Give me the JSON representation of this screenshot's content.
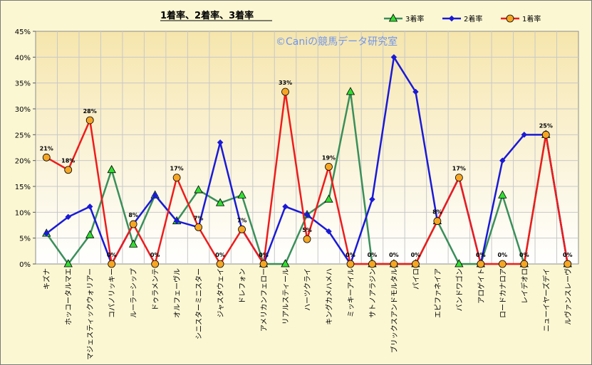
{
  "chart_data": {
    "type": "line",
    "title": "1着率、2着率、3着率",
    "watermark": "©Caniの競馬データ研究室",
    "categories": [
      "キズナ",
      "ホッコータルマエ",
      "マジェスティックウォリアー",
      "コパノリッキー",
      "ルーラーシップ",
      "ドゥラメンテ",
      "オルフェーヴル",
      "シニスターミニスター",
      "ジャスタウェイ",
      "ドレフォン",
      "アメリカンフェロー",
      "リアルスティール",
      "ハーツクライ",
      "キングカメハメハ",
      "ミッキーアイル",
      "サトノアラジン",
      "ブリックスアンドモルタル",
      "パイロ",
      "エピファネイア",
      "バンドワゴン",
      "アロゲイト",
      "ロードカナロア",
      "レイデオロ",
      "ニューイヤーズデイ",
      "ルヴァンスレーヴ"
    ],
    "series": [
      {
        "name": "3着率",
        "color": "#3a8f5a",
        "marker": "triangle",
        "values": [
          5.9,
          0,
          5.6,
          18.2,
          3.8,
          13.3,
          8.3,
          14.3,
          11.8,
          13.3,
          0,
          0,
          9.5,
          12.5,
          33.3,
          0,
          0,
          0,
          8.3,
          0,
          0,
          13.3,
          0,
          25,
          0
        ]
      },
      {
        "name": "2着率",
        "color": "#1a1ad6",
        "marker": "diamond",
        "values": [
          5.9,
          9.1,
          11.1,
          0,
          7.7,
          13.3,
          8.3,
          7.1,
          23.5,
          6.7,
          0,
          11.1,
          9.5,
          6.3,
          0,
          12.5,
          40,
          33.3,
          8.3,
          16.7,
          0,
          20,
          25,
          25,
          0
        ]
      },
      {
        "name": "1着率",
        "color": "#ee1c1c",
        "marker": "circle",
        "values": [
          20.6,
          18.2,
          27.8,
          0,
          7.7,
          0,
          16.7,
          7.1,
          0,
          6.7,
          0,
          33.3,
          4.8,
          18.8,
          0,
          0,
          0,
          0,
          8.3,
          16.7,
          0,
          0,
          0,
          25,
          0
        ],
        "data_labels": [
          "21%",
          "18%",
          "28%",
          "0%",
          "8%",
          "0%",
          "17%",
          "7%",
          "0%",
          "7%",
          "0%",
          "33%",
          "5%",
          "19%",
          "0%",
          "0%",
          "0%",
          "0%",
          "8%",
          "17%",
          "0%",
          "0%",
          "0%",
          "25%",
          "0%"
        ]
      }
    ],
    "y_ticks": [
      "0%",
      "5%",
      "10%",
      "15%",
      "20%",
      "25%",
      "30%",
      "35%",
      "40%",
      "45%"
    ],
    "ylim": [
      0,
      45
    ],
    "grid": true,
    "legend_position": "top-right"
  }
}
